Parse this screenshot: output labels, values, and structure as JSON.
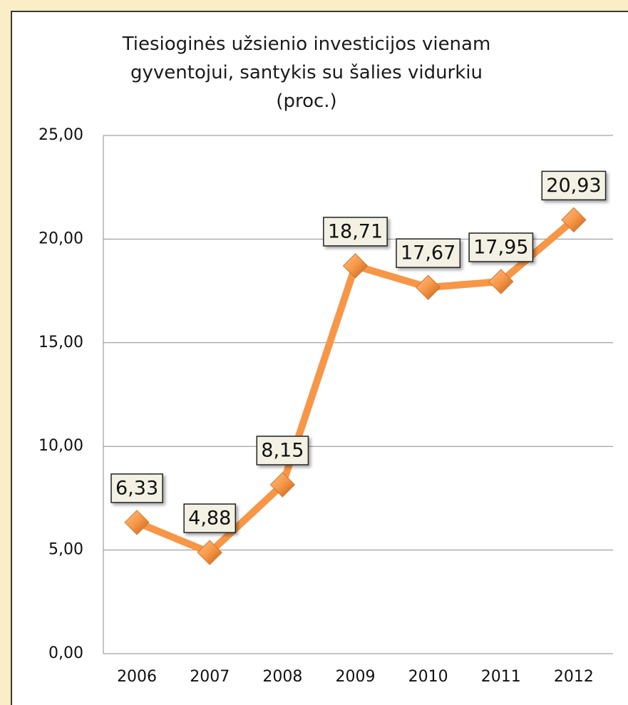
{
  "chart_data": {
    "type": "line",
    "title": "Tiesioginės užsienio investicijos vienam\ngyventojui,  santykis su šalies vidurkiu\n(proc.)",
    "categories": [
      "2006",
      "2007",
      "2008",
      "2009",
      "2010",
      "2011",
      "2012"
    ],
    "series": [
      {
        "name": null,
        "color": "#f79646",
        "values": [
          6.33,
          4.88,
          8.15,
          18.71,
          17.67,
          17.95,
          20.93
        ],
        "value_labels": [
          "6,33",
          "4,88",
          "8,15",
          "18,71",
          "17,67",
          "17,95",
          "20,93"
        ]
      }
    ],
    "ylim": [
      0,
      25
    ],
    "yticks": [
      {
        "value": 0,
        "label": "0,00"
      },
      {
        "value": 5,
        "label": "5,00"
      },
      {
        "value": 10,
        "label": "10,00"
      },
      {
        "value": 15,
        "label": "15,00"
      },
      {
        "value": 20,
        "label": "20,00"
      },
      {
        "value": 25,
        "label": "25,00"
      }
    ],
    "grid": true
  }
}
